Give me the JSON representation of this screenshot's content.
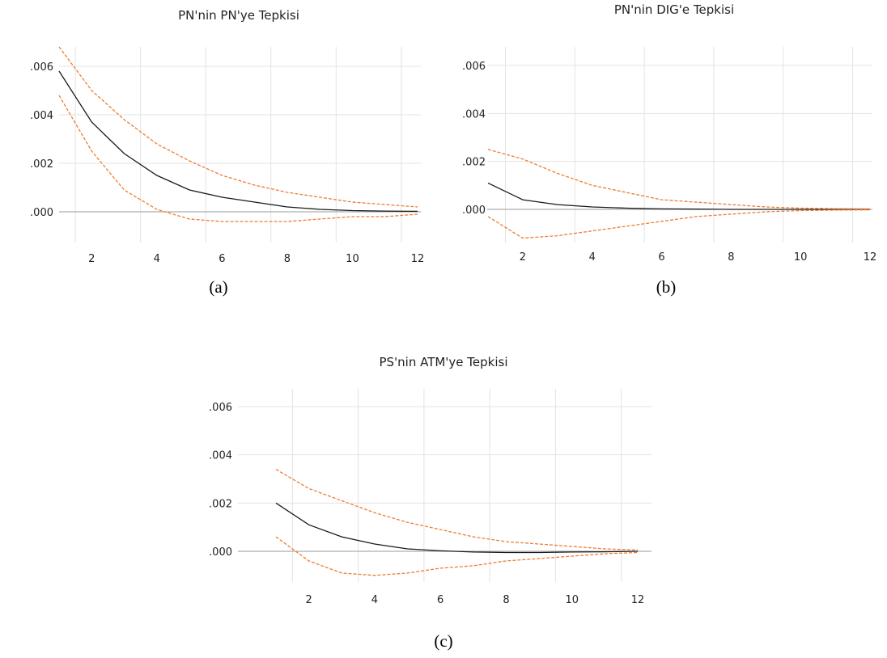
{
  "colors": {
    "response": "#1a1a1a",
    "band": "#ED7D31",
    "grid": "#e3e3e3",
    "zero": "#9a9a9a"
  },
  "chart_data": [
    {
      "type": "line",
      "title": "PN'nin PN'ye Tepkisi",
      "caption": "(a)",
      "x": [
        1,
        2,
        3,
        4,
        5,
        6,
        7,
        8,
        9,
        10,
        11,
        12
      ],
      "x_ticks": [
        2,
        4,
        6,
        8,
        10,
        12
      ],
      "y_ticks": [
        ".000",
        ".002",
        ".004",
        ".006"
      ],
      "y_tick_values": [
        0,
        0.002,
        0.004,
        0.006
      ],
      "ylim": [
        -0.0012,
        0.0068
      ],
      "series": [
        {
          "role": "response",
          "values": [
            0.0058,
            0.0037,
            0.0024,
            0.0015,
            0.0009,
            0.0006,
            0.0004,
            0.0002,
            0.0001,
            5e-05,
            3e-05,
            2e-05
          ]
        },
        {
          "role": "upper",
          "values": [
            0.0068,
            0.005,
            0.0038,
            0.0028,
            0.0021,
            0.0015,
            0.0011,
            0.0008,
            0.0006,
            0.0004,
            0.0003,
            0.0002
          ]
        },
        {
          "role": "lower",
          "values": [
            0.0048,
            0.0025,
            0.0009,
            0.0001,
            -0.0003,
            -0.0004,
            -0.0004,
            -0.0004,
            -0.0003,
            -0.0002,
            -0.0002,
            -0.0001
          ]
        }
      ]
    },
    {
      "type": "line",
      "title": "PN'nin DIG'e Tepkisi",
      "caption": "(b)",
      "x": [
        1,
        2,
        3,
        4,
        5,
        6,
        7,
        8,
        9,
        10,
        11,
        12
      ],
      "x_ticks": [
        2,
        4,
        6,
        8,
        10,
        12
      ],
      "y_ticks": [
        ".000",
        ".002",
        ".004",
        ".006"
      ],
      "y_tick_values": [
        0,
        0.002,
        0.004,
        0.006
      ],
      "ylim": [
        -0.0014,
        0.0068
      ],
      "series": [
        {
          "role": "response",
          "values": [
            0.0011,
            0.0004,
            0.0002,
            0.0001,
            5e-05,
            2e-05,
            1e-05,
            0,
            0,
            0,
            0,
            0
          ]
        },
        {
          "role": "upper",
          "values": [
            0.0025,
            0.0021,
            0.0015,
            0.001,
            0.0007,
            0.0004,
            0.0003,
            0.0002,
            0.0001,
            5e-05,
            3e-05,
            2e-05
          ]
        },
        {
          "role": "lower",
          "values": [
            -0.0003,
            -0.0012,
            -0.0011,
            -0.0009,
            -0.0007,
            -0.0005,
            -0.0003,
            -0.0002,
            -0.0001,
            -5e-05,
            -3e-05,
            -2e-05
          ]
        }
      ]
    },
    {
      "type": "line",
      "title": "PS'nin ATM'ye Tepkisi",
      "caption": "(c)",
      "x": [
        1,
        2,
        3,
        4,
        5,
        6,
        7,
        8,
        9,
        10,
        11,
        12
      ],
      "x_ticks": [
        2,
        4,
        6,
        8,
        10,
        12
      ],
      "y_ticks": [
        ".000",
        ".002",
        ".004",
        ".006"
      ],
      "y_tick_values": [
        0,
        0.002,
        0.004,
        0.006
      ],
      "ylim": [
        -0.0012,
        0.0068
      ],
      "series": [
        {
          "role": "response",
          "values": [
            0.002,
            0.0011,
            0.0006,
            0.0003,
            0.0001,
            2e-05,
            -3e-05,
            -5e-05,
            -5e-05,
            -3e-05,
            -2e-05,
            0
          ]
        },
        {
          "role": "upper",
          "values": [
            0.0034,
            0.0026,
            0.0021,
            0.0016,
            0.0012,
            0.0009,
            0.0006,
            0.0004,
            0.0003,
            0.0002,
            0.0001,
            5e-05
          ]
        },
        {
          "role": "lower",
          "values": [
            0.0006,
            -0.0004,
            -0.0009,
            -0.001,
            -0.0009,
            -0.0007,
            -0.0006,
            -0.0004,
            -0.0003,
            -0.0002,
            -0.0001,
            -5e-05
          ]
        }
      ]
    }
  ]
}
